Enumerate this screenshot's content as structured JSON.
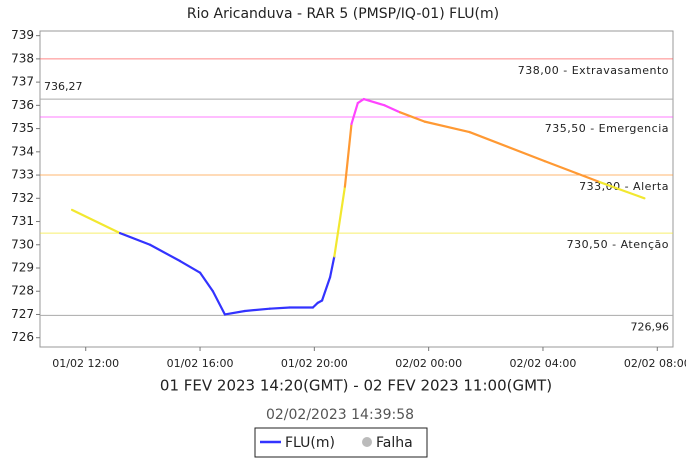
{
  "chart_data": {
    "type": "line",
    "title": "Rio Aricanduva - RAR 5 (PMSP/IQ-01) FLU(m)",
    "xlabel": "01 FEV 2023 14:20(GMT) - 02 FEV 2023 11:00(GMT)",
    "timestamp": "02/02/2023 14:39:58",
    "xlim": [
      10.4,
      32.55
    ],
    "xticks": [
      {
        "value": 12,
        "label": "01/02 12:00"
      },
      {
        "value": 16,
        "label": "01/02 16:00"
      },
      {
        "value": 20,
        "label": "01/02 20:00"
      },
      {
        "value": 24,
        "label": "02/02 00:00"
      },
      {
        "value": 28,
        "label": "02/02 04:00"
      },
      {
        "value": 32,
        "label": "02/02 08:00"
      }
    ],
    "ylim": [
      725.6,
      739.2
    ],
    "yticks": [
      726,
      727,
      728,
      729,
      730,
      731,
      732,
      733,
      734,
      735,
      736,
      737,
      738,
      739
    ],
    "series": [
      {
        "name": "FLU(m)",
        "color": "#3333ff",
        "x": [
          11.52,
          13.2,
          14.25,
          15.3,
          16.0,
          16.45,
          16.87,
          17.57,
          18.44,
          19.14,
          19.95,
          20.12,
          20.27,
          20.55,
          20.7,
          21.07,
          21.3,
          21.52,
          21.73,
          22.46,
          23.0,
          23.86,
          25.43,
          28.06,
          29.98,
          31.55
        ],
        "values": [
          731.5,
          730.5,
          730.0,
          729.3,
          728.8,
          728.0,
          727.0,
          727.15,
          727.25,
          727.3,
          727.3,
          727.5,
          727.6,
          728.6,
          729.5,
          732.5,
          735.2,
          736.1,
          736.27,
          736.0,
          735.7,
          735.3,
          734.85,
          733.6,
          732.7,
          732.0
        ]
      }
    ],
    "reference_lines": [
      {
        "value": 738,
        "label": "738,00 - Extravasamento",
        "color": "#ff5555"
      },
      {
        "value": 735.5,
        "label": "735,50 - Emergencia",
        "color": "#ff44ff"
      },
      {
        "value": 733,
        "label": "733,00 - Alerta",
        "color": "#ff9933"
      },
      {
        "value": 730.5,
        "label": "730,50 - Atenção",
        "color": "#f2e830"
      }
    ],
    "markers": [
      {
        "value": 736.27,
        "label": "736,27",
        "side": "left"
      },
      {
        "value": 726.96,
        "label": "726,96",
        "side": "right"
      }
    ],
    "failure_label": "Falha",
    "failure_color": "#bbbbbb"
  }
}
